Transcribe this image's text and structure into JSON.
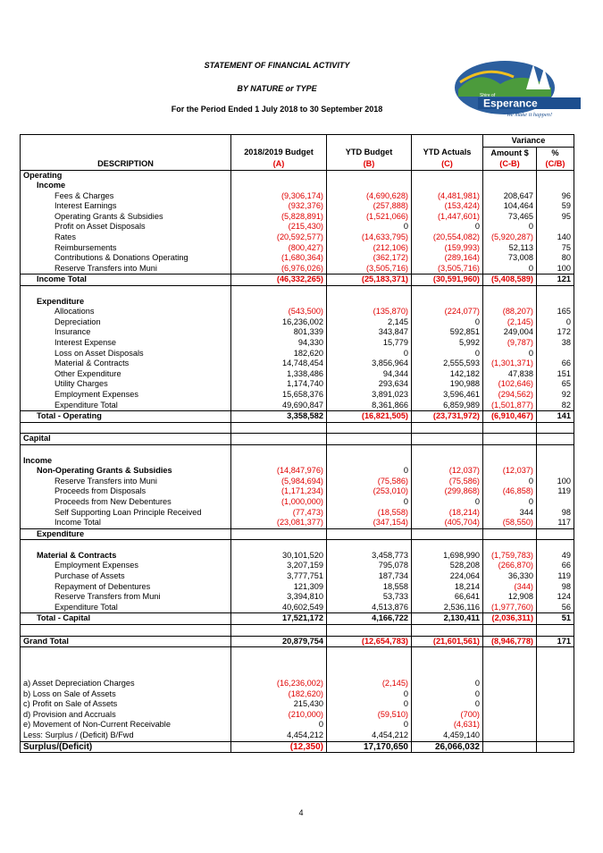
{
  "header": {
    "title": "STATEMENT OF FINANCIAL ACTIVITY",
    "subtitle": "BY NATURE or TYPE",
    "period": "For the Period Ended 1 July 2018 to 30 September 2018",
    "logo": {
      "line1": "Shire of",
      "line2": "Esperance",
      "tagline": "We make it happen!"
    }
  },
  "table": {
    "variance_label": "Variance",
    "column_headers": [
      [
        null,
        "2018/2019 Budget",
        "YTD Budget",
        "YTD Actuals",
        "Amount $",
        "%"
      ],
      [
        "DESCRIPTION",
        "(A)",
        "(B)",
        "(C)",
        "(C-B)",
        "(C/B)"
      ]
    ],
    "rows": [
      [
        "Operating"
      ],
      [
        "Income"
      ],
      [
        "Fees & Charges",
        "(9,306,174)",
        "(4,690,628)",
        "(4,481,981)",
        "208,647",
        "96"
      ],
      [
        "Interest Earnings",
        "(932,376)",
        "(257,888)",
        "(153,424)",
        "104,464",
        "59"
      ],
      [
        "Operating Grants & Subsidies",
        "(5,828,891)",
        "(1,521,066)",
        "(1,447,601)",
        "73,465",
        "95"
      ],
      [
        "Profit on Asset Disposals",
        "(215,430)",
        "0",
        "0",
        "0",
        null
      ],
      [
        "Rates",
        "(20,592,577)",
        "(14,633,795)",
        "(20,554,082)",
        "(5,920,287)",
        "140"
      ],
      [
        "Reimbursements",
        "(800,427)",
        "(212,106)",
        "(159,993)",
        "52,113",
        "75"
      ],
      [
        "Contributions & Donations Operating",
        "(1,680,364)",
        "(362,172)",
        "(289,164)",
        "73,008",
        "80"
      ],
      [
        "Reserve Transfers into Muni",
        "(6,976,026)",
        "(3,505,716)",
        "(3,505,716)",
        "0",
        "100"
      ],
      [
        "Income Total",
        "(46,332,265)",
        "(25,183,371)",
        "(30,591,960)",
        "(5,408,589)",
        "121"
      ],
      [
        "Expenditure"
      ],
      [
        "Allocations",
        "(543,500)",
        "(135,870)",
        "(224,077)",
        "(88,207)",
        "165"
      ],
      [
        "Depreciation",
        "16,236,002",
        "2,145",
        "0",
        "(2,145)",
        "0"
      ],
      [
        "Insurance",
        "801,339",
        "343,847",
        "592,851",
        "249,004",
        "172"
      ],
      [
        "Interest Expense",
        "94,330",
        "15,779",
        "5,992",
        "(9,787)",
        "38"
      ],
      [
        "Loss on Asset Disposals",
        "182,620",
        "0",
        "0",
        "0",
        null
      ],
      [
        "Material & Contracts",
        "14,748,454",
        "3,856,964",
        "2,555,593",
        "(1,301,371)",
        "66"
      ],
      [
        "Other Expenditure",
        "1,338,486",
        "94,344",
        "142,182",
        "47,838",
        "151"
      ],
      [
        "Utility Charges",
        "1,174,740",
        "293,634",
        "190,988",
        "(102,646)",
        "65"
      ],
      [
        "Employment Expenses",
        "15,658,376",
        "3,891,023",
        "3,596,461",
        "(294,562)",
        "92"
      ],
      [
        "Expenditure Total",
        "49,690,847",
        "8,361,866",
        "6,859,989",
        "(1,501,877)",
        "82"
      ],
      [
        "Total - Operating",
        "3,358,582",
        "(16,821,505)",
        "(23,731,972)",
        "(6,910,467)",
        "141"
      ],
      [
        "Capital"
      ],
      [
        "Income"
      ],
      [
        "Non-Operating Grants & Subsidies",
        "(14,847,976)",
        "0",
        "(12,037)",
        "(12,037)",
        null
      ],
      [
        "Reserve Transfers into Muni",
        "(5,984,694)",
        "(75,586)",
        "(75,586)",
        "0",
        "100"
      ],
      [
        "Proceeds from Disposals",
        "(1,171,234)",
        "(253,010)",
        "(299,868)",
        "(46,858)",
        "119"
      ],
      [
        "Proceeds from New Debentures",
        "(1,000,000)",
        "0",
        "0",
        "0",
        null
      ],
      [
        "Self Supporting Loan Principle Received",
        "(77,473)",
        "(18,558)",
        "(18,214)",
        "344",
        "98"
      ],
      [
        "Income Total",
        "(23,081,377)",
        "(347,154)",
        "(405,704)",
        "(58,550)",
        "117"
      ],
      [
        "Expenditure"
      ],
      [
        "Material & Contracts",
        "30,101,520",
        "3,458,773",
        "1,698,990",
        "(1,759,783)",
        "49"
      ],
      [
        "Employment Expenses",
        "3,207,159",
        "795,078",
        "528,208",
        "(266,870)",
        "66"
      ],
      [
        "Purchase of Assets",
        "3,777,751",
        "187,734",
        "224,064",
        "36,330",
        "119"
      ],
      [
        "Repayment of Debentures",
        "121,309",
        "18,558",
        "18,214",
        "(344)",
        "98"
      ],
      [
        "Reserve Transfers from Muni",
        "3,394,810",
        "53,733",
        "66,641",
        "12,908",
        "124"
      ],
      [
        "Expenditure Total",
        "40,602,549",
        "4,513,876",
        "2,536,116",
        "(1,977,760)",
        "56"
      ],
      [
        "Total - Capital",
        "17,521,172",
        "4,166,722",
        "2,130,411",
        "(2,036,311)",
        "51"
      ],
      [
        "Grand Total",
        "20,879,754",
        "(12,654,783)",
        "(21,601,561)",
        "(8,946,778)",
        "171"
      ]
    ],
    "adjustments": [
      [
        "a) Asset Depreciation Charges",
        "(16,236,002)",
        "(2,145)",
        "0"
      ],
      [
        "b) Loss on Sale of Assets",
        "(182,620)",
        "0",
        "0"
      ],
      [
        "c) Profit on Sale of Assets",
        "215,430",
        "0",
        "0"
      ],
      [
        "d) Provision and Accruals",
        "(210,000)",
        "(59,510)",
        "(700)"
      ],
      [
        "e) Movement of Non-Current Receivable",
        "0",
        "0",
        "(4,631)"
      ],
      [
        "Less: Surplus / (Deficit) B/Fwd",
        "4,454,212",
        "4,454,212",
        "4,459,140"
      ],
      [
        "Surplus/(Deficit)",
        "(12,350)",
        "17,170,650",
        "26,066,032"
      ]
    ]
  },
  "page_number": "4"
}
